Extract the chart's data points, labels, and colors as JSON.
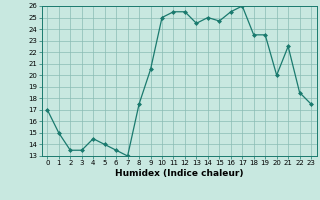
{
  "x": [
    0,
    1,
    2,
    3,
    4,
    5,
    6,
    7,
    8,
    9,
    10,
    11,
    12,
    13,
    14,
    15,
    16,
    17,
    18,
    19,
    20,
    21,
    22,
    23
  ],
  "y": [
    17,
    15,
    13.5,
    13.5,
    14.5,
    14,
    13.5,
    13,
    17.5,
    20.5,
    25,
    25.5,
    25.5,
    24.5,
    25,
    24.7,
    25.5,
    26,
    23.5,
    23.5,
    20,
    22.5,
    18.5,
    17.5
  ],
  "line_color": "#1a7a6e",
  "marker_color": "#1a7a6e",
  "bg_color": "#c8e8e0",
  "grid_color": "#8abcb4",
  "xlabel": "Humidex (Indice chaleur)",
  "xlim": [
    -0.5,
    23.5
  ],
  "ylim": [
    13,
    26
  ],
  "yticks": [
    13,
    14,
    15,
    16,
    17,
    18,
    19,
    20,
    21,
    22,
    23,
    24,
    25,
    26
  ],
  "xticks": [
    0,
    1,
    2,
    3,
    4,
    5,
    6,
    7,
    8,
    9,
    10,
    11,
    12,
    13,
    14,
    15,
    16,
    17,
    18,
    19,
    20,
    21,
    22,
    23
  ]
}
